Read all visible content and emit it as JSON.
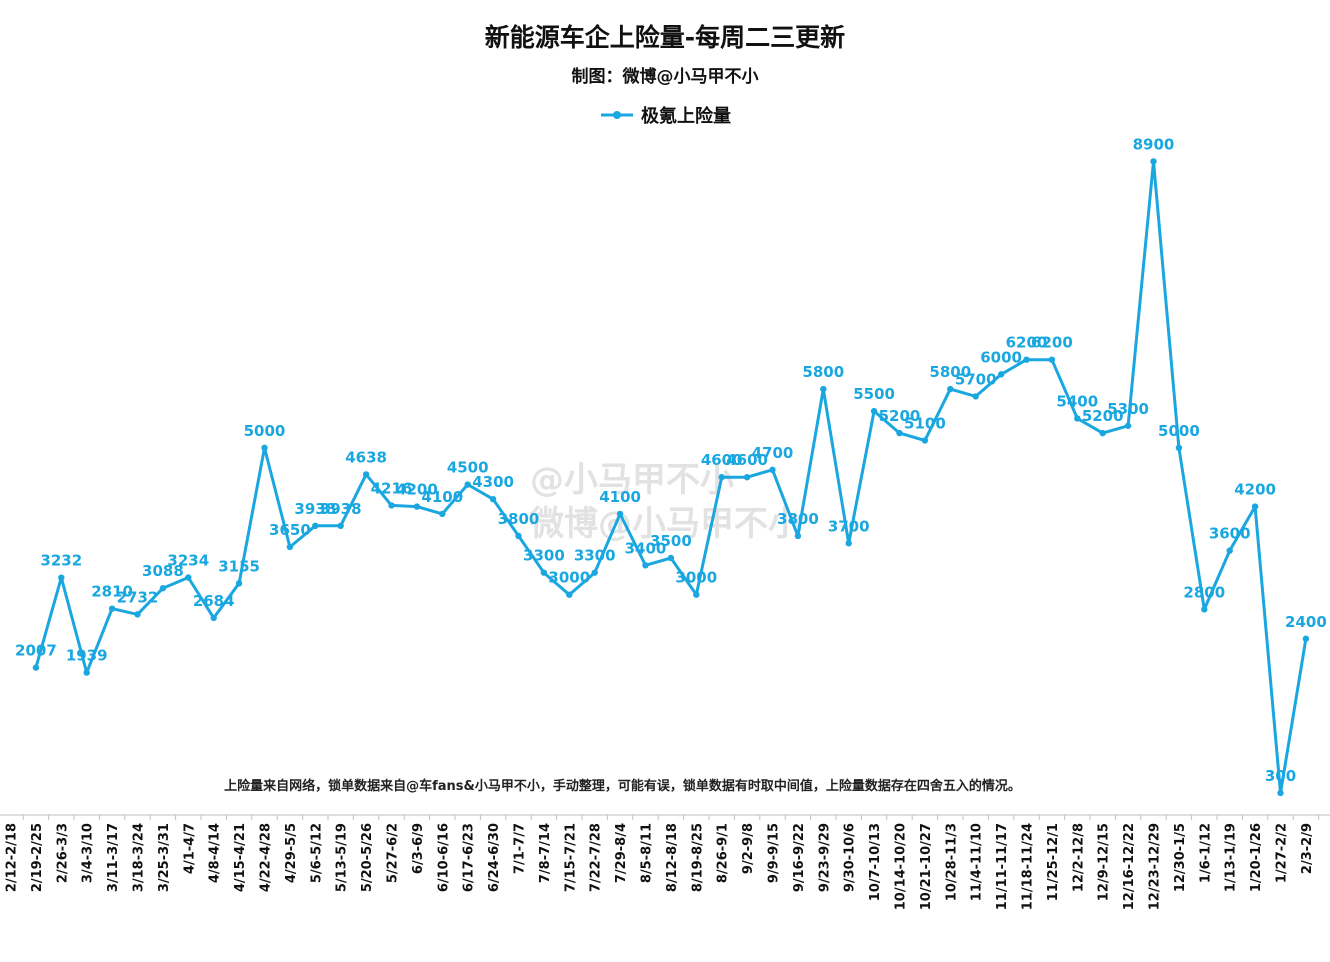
{
  "chart_data": {
    "type": "line",
    "title": "新能源车企上险量-每周二三更新",
    "subtitle": "制图：微博@小马甲不小",
    "note": "上险量来自网络，锁单数据来自@车fans&小马甲不小，手动整理，可能有误，锁单数据有时取中间值，上险量数据存在四舍五入的情况。",
    "watermark": "@小马甲不小",
    "watermark2": "微博@小马甲不小",
    "legend_position": "top-center",
    "grid": false,
    "ylim": [
      0,
      9600
    ],
    "categories": [
      "2/12-2/18",
      "2/19-2/25",
      "2/26-3/3",
      "3/4-3/10",
      "3/11-3/17",
      "3/18-3/24",
      "3/25-3/31",
      "4/1-4/7",
      "4/8-4/14",
      "4/15-4/21",
      "4/22-4/28",
      "4/29-5/5",
      "5/6-5/12",
      "5/13-5/19",
      "5/20-5/26",
      "5/27-6/2",
      "6/3-6/9",
      "6/10-6/16",
      "6/17-6/23",
      "6/24-6/30",
      "7/1-7/7",
      "7/8-7/14",
      "7/15-7/21",
      "7/22-7/28",
      "7/29-8/4",
      "8/5-8/11",
      "8/12-8/18",
      "8/19-8/25",
      "8/26-9/1",
      "9/2-9/8",
      "9/9-9/15",
      "9/16-9/22",
      "9/23-9/29",
      "9/30-10/6",
      "10/7-10/13",
      "10/14-10/20",
      "10/21-10/27",
      "10/28-11/3",
      "11/4-11/10",
      "11/11-11/17",
      "11/18-11/24",
      "11/25-12/1",
      "12/2-12/8",
      "12/9-12/15",
      "12/16-12/22",
      "12/23-12/29",
      "12/30-1/5",
      "1/6-1/12",
      "1/13-1/19",
      "1/20-1/26",
      "1/27-2/2",
      "2/3-2/9"
    ],
    "series": [
      {
        "name": "极氪上险量",
        "color": "#1aa7e0",
        "values": [
          null,
          2007,
          3232,
          1939,
          2810,
          2732,
          3088,
          3234,
          2684,
          3155,
          5000,
          3650,
          3938,
          3938,
          4638,
          4216,
          4200,
          4100,
          4500,
          4300,
          3800,
          3300,
          3000,
          3300,
          4100,
          3400,
          3500,
          3000,
          4600,
          4600,
          4700,
          3800,
          5800,
          3700,
          5500,
          5200,
          5100,
          5800,
          5700,
          6000,
          6200,
          6200,
          5400,
          5200,
          5300,
          8900,
          5000,
          2800,
          3600,
          4200,
          300,
          2400
        ]
      }
    ]
  }
}
